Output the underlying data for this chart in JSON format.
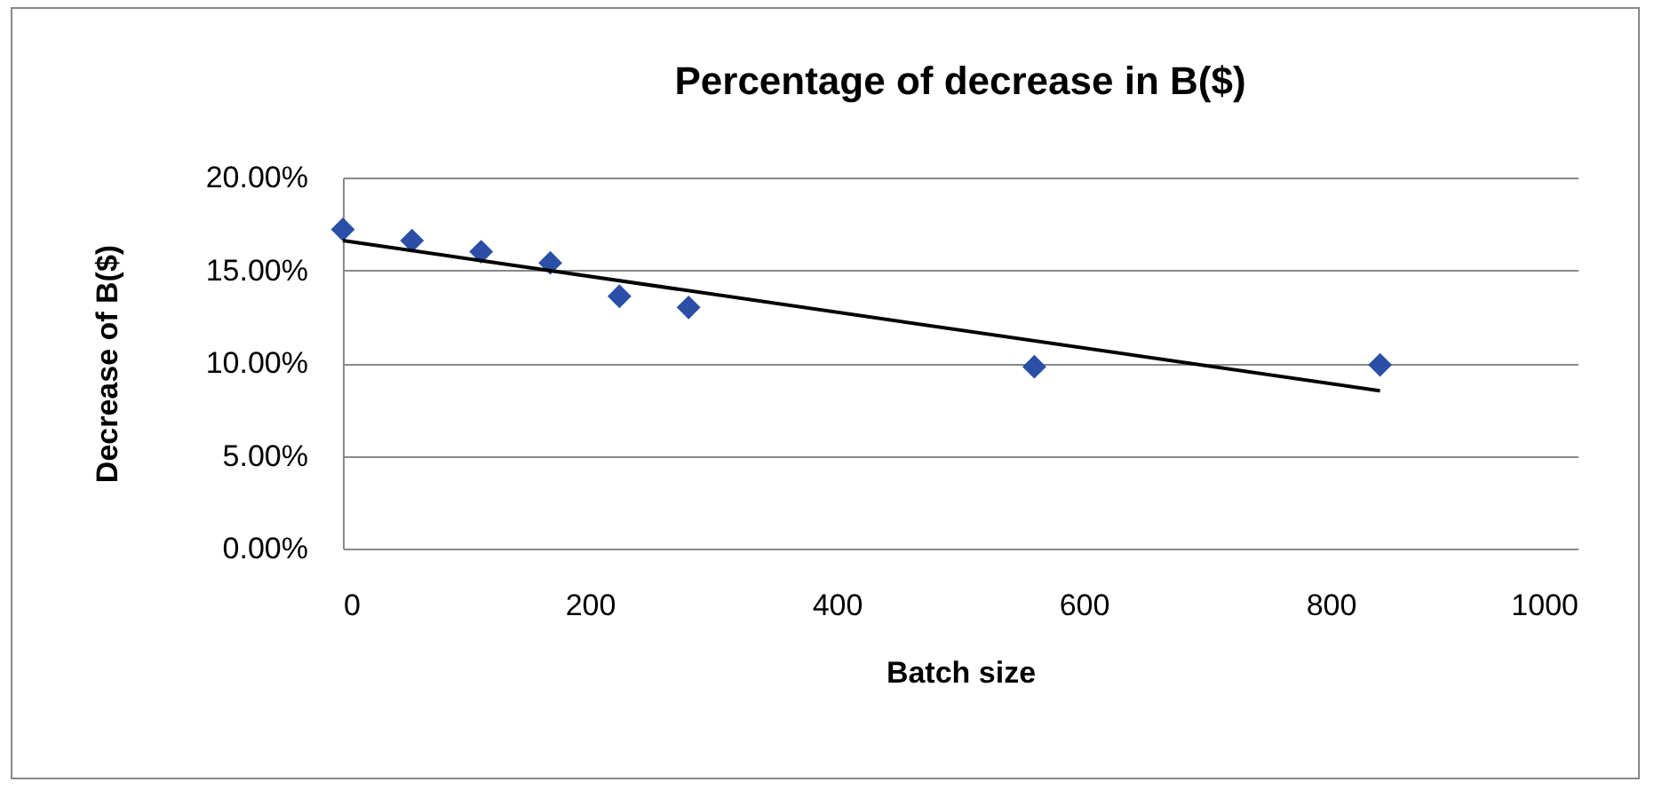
{
  "chart_data": {
    "type": "scatter",
    "title": "Percentage of decrease in B($)",
    "xlabel": "Batch size",
    "ylabel": "Decrease of B($)",
    "x": [
      0,
      56,
      112,
      168,
      224,
      280,
      560,
      840
    ],
    "series": [
      {
        "color": "#2b4ea6",
        "marker": "diamond",
        "values": [
          17.2,
          16.6,
          16.0,
          15.4,
          13.6,
          13.0,
          9.8,
          9.9
        ]
      },
      {
        "type": "line",
        "color": "#000000",
        "marker": "none",
        "x": [
          0,
          840
        ],
        "values": [
          16.6,
          8.5
        ]
      }
    ],
    "xlim": [
      0,
      1000
    ],
    "xticks": [
      0,
      200,
      400,
      600,
      800,
      1000
    ],
    "ylim": [
      0,
      20
    ],
    "yticks": [
      {
        "value": 0,
        "label": "0.00%"
      },
      {
        "value": 5,
        "label": "5.00%"
      },
      {
        "value": 10,
        "label": "10.00%"
      },
      {
        "value": 15,
        "label": "15.00%"
      },
      {
        "value": 20,
        "label": "20.00%"
      }
    ],
    "grid": "y"
  }
}
